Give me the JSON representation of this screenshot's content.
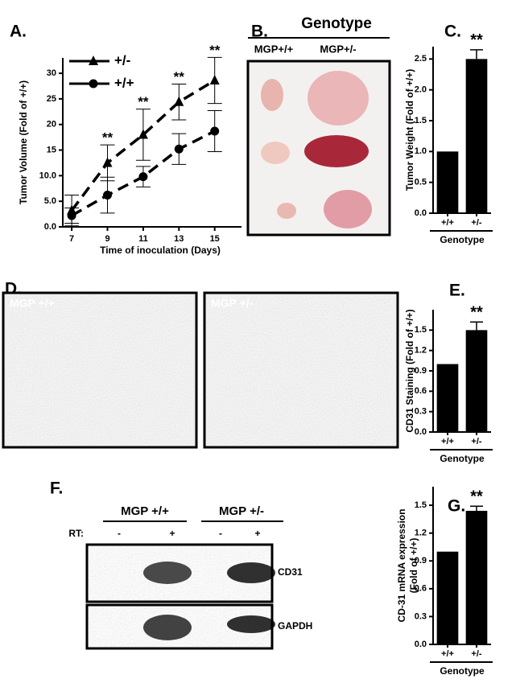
{
  "chart_data": [
    {
      "type": "line",
      "panel_label": "A.",
      "ylabel": "Tumor Volume (Fold of +/+)",
      "xlabel": "Time of inoculation (Days)",
      "x": [
        7,
        9,
        11,
        13,
        15
      ],
      "xlim": [
        6.5,
        16.5
      ],
      "xticks": [
        7,
        9,
        11,
        13,
        15
      ],
      "ylim": [
        0,
        33
      ],
      "yticks": [
        {
          "value": 0,
          "label": "0.0"
        },
        {
          "value": 5,
          "label": "5.0"
        },
        {
          "value": 10,
          "label": "10.0"
        },
        15,
        20,
        25,
        30
      ],
      "series": [
        {
          "name": "+/-",
          "color": "#000000",
          "marker": "triangle",
          "values": [
            3.2,
            12.5,
            18,
            24.4,
            28.6
          ],
          "errors": [
            3,
            3.5,
            5,
            3.5,
            4.5
          ]
        },
        {
          "name": "+/+",
          "color": "#000000",
          "marker": "circle",
          "values": [
            2.2,
            6.2,
            9.8,
            15.2,
            18.7
          ],
          "errors": [
            1.5,
            3.5,
            2,
            3,
            4
          ]
        }
      ],
      "annotations": [
        null,
        "**",
        "**",
        "**",
        "**"
      ],
      "legend": "upper left"
    },
    {
      "type": "bar",
      "panel_label": "C.",
      "ylabel": [
        "Tumor Weight (Fold of +/+)"
      ],
      "xlabel": "Genotype",
      "categories": [
        "+/+",
        "+/-"
      ],
      "values": [
        1,
        2.5
      ],
      "errors": [
        null,
        0.15
      ],
      "color": "#000000",
      "ylim": [
        0,
        2.7
      ],
      "yticks": [
        {
          "value": 0,
          "label": "0.0"
        },
        0.5,
        {
          "value": 1,
          "label": "1.0"
        },
        1.5,
        {
          "value": 2,
          "label": "2.0"
        },
        2.5
      ],
      "annotations": [
        null,
        "**"
      ]
    },
    {
      "type": "bar",
      "panel_label": "E.",
      "ylabel": [
        "CD31 Staining (Fold of +/+)"
      ],
      "xlabel": "Genotype",
      "categories": [
        "+/+",
        "+/-"
      ],
      "values": [
        1,
        1.5
      ],
      "errors": [
        null,
        0.12
      ],
      "color": "#000000",
      "ylim": [
        0,
        1.8
      ],
      "yticks": [
        {
          "value": 0,
          "label": "0.0"
        },
        0.3,
        0.6,
        0.9,
        1.2,
        1.5
      ],
      "annotations": [
        null,
        "**"
      ]
    },
    {
      "type": "bar",
      "panel_label": "G.",
      "ylabel": [
        "CD-31 mRNA expression",
        "(Fold of +/+)"
      ],
      "xlabel": "Genotype",
      "categories": [
        "+/+",
        "+/-"
      ],
      "values": [
        1,
        1.44
      ],
      "errors": [
        null,
        0.05
      ],
      "color": "#000000",
      "ylim": [
        0,
        1.7
      ],
      "yticks": [
        {
          "value": 0,
          "label": "0.0"
        },
        0.3,
        0.6,
        0.9,
        1.2,
        1.5
      ],
      "annotations": [
        null,
        "**"
      ]
    }
  ],
  "panel_b": {
    "label": "B.",
    "title": "Genotype",
    "columns": [
      "MGP+/+",
      "MGP+/-"
    ]
  },
  "panel_d": {
    "label": "D.",
    "images": [
      "MGP +/+",
      "MGP +/-"
    ]
  },
  "panel_f": {
    "label": "F.",
    "groups": [
      "MGP +/+",
      "MGP +/-"
    ],
    "rt_label": "RT:",
    "lanes": [
      "-",
      "+",
      "-",
      "+"
    ],
    "bands": [
      "CD31",
      "GAPDH"
    ]
  }
}
